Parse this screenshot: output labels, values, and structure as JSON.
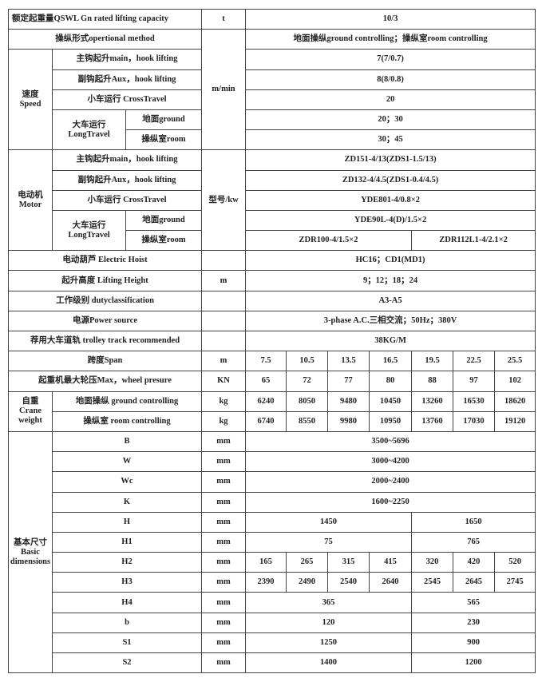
{
  "capacity": {
    "label": "额定起重量QSWL Gn rated lifting capacity",
    "unit": "t",
    "value": "10/3"
  },
  "method": {
    "label": "操纵形式opertional method",
    "value": "地面操纵ground controlling；操纵室room controlling"
  },
  "speed": {
    "group": "速度",
    "group_en": "Speed",
    "unit": "m/min",
    "main": {
      "label": "主钩起升main，hook lifting",
      "value": "7(7/0.7)"
    },
    "aux": {
      "label": "副钩起升Aux，hook lifting",
      "value": "8(8/0.8)"
    },
    "cross": {
      "label": "小车运行 CrossTravel",
      "value": "20"
    },
    "long": {
      "label": "大车运行",
      "label_en": "LongTravel",
      "ground": "地面ground",
      "ground_value": "20；30",
      "room": "操纵室room",
      "room_value": "30；45"
    }
  },
  "motor": {
    "group": "电动机",
    "group_en": "Motor",
    "unit": "型号/kw",
    "main": {
      "label": "主钩起升main，hook lifting",
      "value": "ZD151-4/13(ZDS1-1.5/13)"
    },
    "aux": {
      "label": "副钩起升Aux，hook lifting",
      "value": "ZD132-4/4.5(ZDS1-0.4/4.5)"
    },
    "cross": {
      "label": "小车运行 CrossTravel",
      "value": "YDE801-4/0.8×2"
    },
    "long": {
      "label": "大车运行",
      "label_en": "LongTravel",
      "ground": "地面ground",
      "ground_value": "YDE90L-4(D)/1.5×2",
      "room": "操纵室room",
      "room_value_a": "ZDR100-4/1.5×2",
      "room_value_b": "ZDR112L1-4/2.1×2"
    }
  },
  "hoist": {
    "label": "电动葫芦 Electric Hoist",
    "value": "HC16；CD1(MD1)"
  },
  "height": {
    "label": "起升高度 Lifting Height",
    "unit": "m",
    "value": "9；12；18；24"
  },
  "duty": {
    "label": "工作级别 dutyclassification",
    "value": "A3-A5"
  },
  "power": {
    "label": "电源Power source",
    "value": "3-phase A.C.三相交流；50Hz；380V"
  },
  "track": {
    "label": "荐用大车道轨 trolley track recommended",
    "value": "38KG/M"
  },
  "span": {
    "label": "跨度Span",
    "unit": "m",
    "values": [
      "7.5",
      "10.5",
      "13.5",
      "16.5",
      "19.5",
      "22.5",
      "25.5"
    ]
  },
  "wheel": {
    "label": "起重机最大轮压Max，wheel presure",
    "unit": "KN",
    "values": [
      "65",
      "72",
      "77",
      "80",
      "88",
      "97",
      "102"
    ]
  },
  "weight": {
    "group": "自重",
    "group_en1": "Crane",
    "group_en2": "weight",
    "ground": {
      "label": "地面操纵 ground controlling",
      "unit": "kg",
      "values": [
        "6240",
        "8050",
        "9480",
        "10450",
        "13260",
        "16530",
        "18620"
      ]
    },
    "room": {
      "label": "操纵室 room controlling",
      "unit": "kg",
      "values": [
        "6740",
        "8550",
        "9980",
        "10950",
        "13760",
        "17030",
        "19120"
      ]
    }
  },
  "dims": {
    "group": "基本尺寸",
    "group_en1": "Basic",
    "group_en2": "dimensions",
    "unit": "mm",
    "B": {
      "label": "B",
      "value": "3500~5696"
    },
    "W": {
      "label": "W",
      "value": "3000~4200"
    },
    "Wc": {
      "label": "Wc",
      "value": "2000~2400"
    },
    "K": {
      "label": "K",
      "value": "1600~2250"
    },
    "H": {
      "label": "H",
      "a": "1450",
      "b": "1650"
    },
    "H1": {
      "label": "H1",
      "a": "75",
      "b": "765"
    },
    "H2": {
      "label": "H2",
      "values": [
        "165",
        "265",
        "315",
        "415",
        "320",
        "420",
        "520"
      ]
    },
    "H3": {
      "label": "H3",
      "values": [
        "2390",
        "2490",
        "2540",
        "2640",
        "2545",
        "2645",
        "2745"
      ]
    },
    "H4": {
      "label": "H4",
      "a": "365",
      "b": "565"
    },
    "b": {
      "label": "b",
      "a": "120",
      "b": "230"
    },
    "S1": {
      "label": "S1",
      "a": "1250",
      "b": "900"
    },
    "S2": {
      "label": "S2",
      "a": "1400",
      "b": "1200"
    }
  }
}
